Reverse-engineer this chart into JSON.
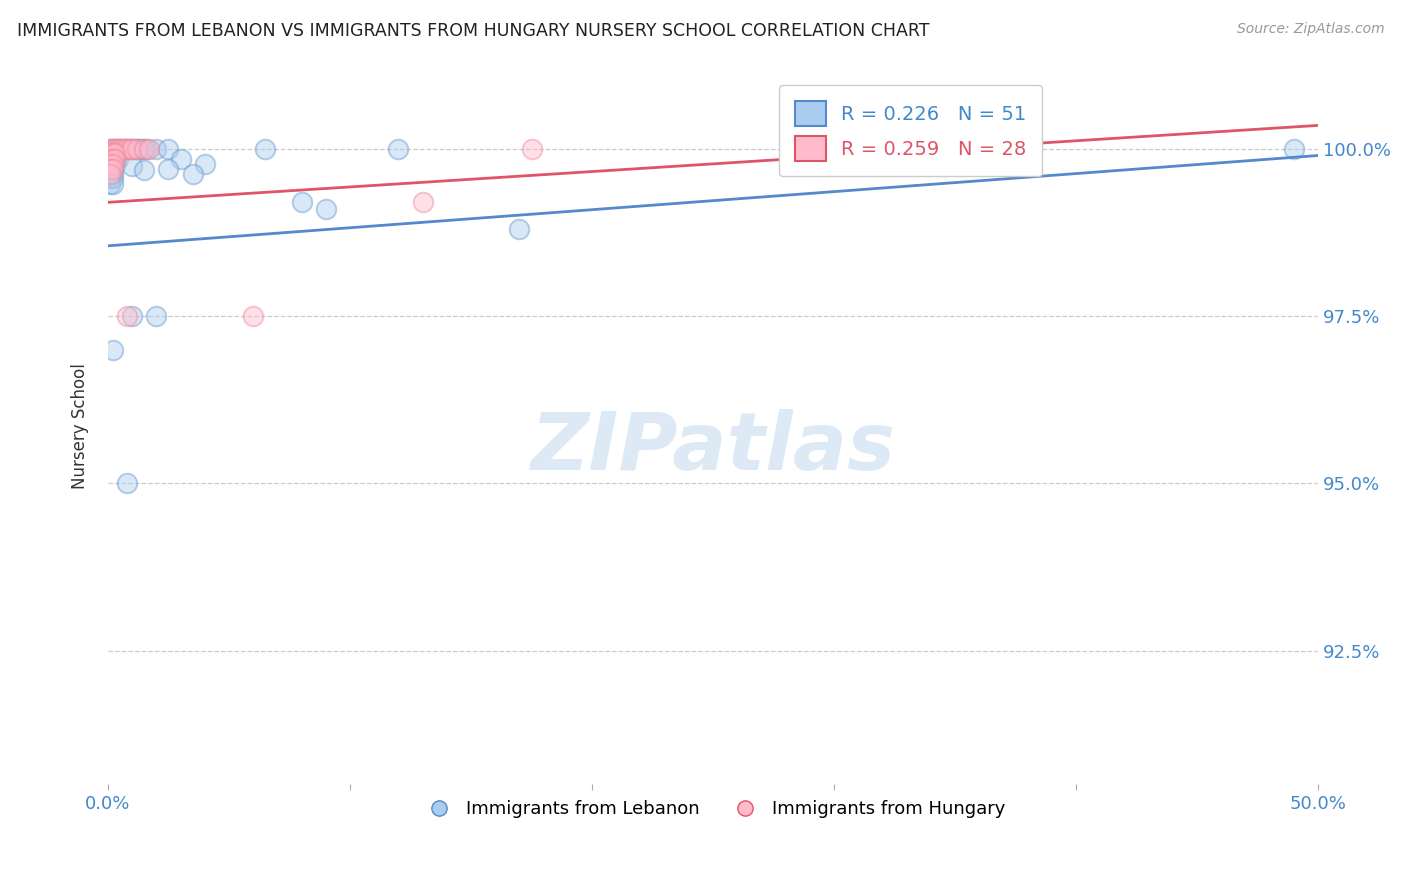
{
  "title": "IMMIGRANTS FROM LEBANON VS IMMIGRANTS FROM HUNGARY NURSERY SCHOOL CORRELATION CHART",
  "source": "Source: ZipAtlas.com",
  "ylabel": "Nursery School",
  "xlim": [
    0.0,
    0.5
  ],
  "ylim": [
    0.905,
    1.012
  ],
  "xticks": [
    0.0,
    0.1,
    0.2,
    0.3,
    0.4,
    0.5
  ],
  "xticklabels": [
    "0.0%",
    "",
    "",
    "",
    "",
    "50.0%"
  ],
  "yticks": [
    0.925,
    0.95,
    0.975,
    1.0
  ],
  "yticklabels": [
    "92.5%",
    "95.0%",
    "97.5%",
    "100.0%"
  ],
  "grid_color": "#cccccc",
  "background_color": "#ffffff",
  "lebanon_color": "#6699cc",
  "hungary_color": "#ff8899",
  "lebanon_r": 0.226,
  "lebanon_n": 51,
  "hungary_r": 0.259,
  "hungary_n": 28,
  "lebanon_scatter": [
    [
      0.001,
      1.0
    ],
    [
      0.002,
      1.0
    ],
    [
      0.003,
      1.0
    ],
    [
      0.004,
      1.0
    ],
    [
      0.005,
      1.0
    ],
    [
      0.006,
      1.0
    ],
    [
      0.007,
      1.0
    ],
    [
      0.008,
      1.0
    ],
    [
      0.009,
      1.0
    ],
    [
      0.01,
      1.0
    ],
    [
      0.011,
      1.0
    ],
    [
      0.012,
      1.0
    ],
    [
      0.013,
      1.0
    ],
    [
      0.014,
      1.0
    ],
    [
      0.015,
      1.0
    ],
    [
      0.016,
      1.0
    ],
    [
      0.02,
      1.0
    ],
    [
      0.025,
      1.0
    ],
    [
      0.065,
      1.0
    ],
    [
      0.12,
      1.0
    ],
    [
      0.49,
      1.0
    ],
    [
      0.002,
      0.9993
    ],
    [
      0.003,
      0.9993
    ],
    [
      0.001,
      0.9985
    ],
    [
      0.002,
      0.9985
    ],
    [
      0.003,
      0.9985
    ],
    [
      0.004,
      0.9985
    ],
    [
      0.001,
      0.9978
    ],
    [
      0.002,
      0.9978
    ],
    [
      0.003,
      0.9978
    ],
    [
      0.001,
      0.997
    ],
    [
      0.002,
      0.997
    ],
    [
      0.001,
      0.9963
    ],
    [
      0.002,
      0.9963
    ],
    [
      0.001,
      0.9956
    ],
    [
      0.002,
      0.9956
    ],
    [
      0.001,
      0.9948
    ],
    [
      0.002,
      0.9948
    ],
    [
      0.03,
      0.9985
    ],
    [
      0.04,
      0.9978
    ],
    [
      0.025,
      0.997
    ],
    [
      0.035,
      0.9963
    ],
    [
      0.01,
      0.9975
    ],
    [
      0.015,
      0.9968
    ],
    [
      0.01,
      0.975
    ],
    [
      0.02,
      0.975
    ],
    [
      0.002,
      0.97
    ],
    [
      0.008,
      0.95
    ],
    [
      0.08,
      0.992
    ],
    [
      0.09,
      0.991
    ],
    [
      0.17,
      0.988
    ]
  ],
  "hungary_scatter": [
    [
      0.001,
      1.0
    ],
    [
      0.002,
      1.0
    ],
    [
      0.003,
      1.0
    ],
    [
      0.004,
      1.0
    ],
    [
      0.005,
      1.0
    ],
    [
      0.006,
      1.0
    ],
    [
      0.007,
      1.0
    ],
    [
      0.008,
      1.0
    ],
    [
      0.009,
      1.0
    ],
    [
      0.01,
      1.0
    ],
    [
      0.012,
      1.0
    ],
    [
      0.015,
      1.0
    ],
    [
      0.017,
      1.0
    ],
    [
      0.175,
      1.0
    ],
    [
      0.001,
      0.9993
    ],
    [
      0.002,
      0.9993
    ],
    [
      0.003,
      0.9993
    ],
    [
      0.001,
      0.9985
    ],
    [
      0.002,
      0.9985
    ],
    [
      0.003,
      0.9985
    ],
    [
      0.001,
      0.9978
    ],
    [
      0.002,
      0.9978
    ],
    [
      0.001,
      0.997
    ],
    [
      0.002,
      0.997
    ],
    [
      0.001,
      0.9963
    ],
    [
      0.06,
      0.975
    ],
    [
      0.008,
      0.975
    ],
    [
      0.13,
      0.992
    ]
  ],
  "lebanon_trendline_x": [
    0.0,
    0.5
  ],
  "lebanon_trendline_y": [
    0.9855,
    0.999
  ],
  "hungary_trendline_x": [
    0.0,
    0.5
  ],
  "hungary_trendline_y": [
    0.992,
    1.0035
  ]
}
